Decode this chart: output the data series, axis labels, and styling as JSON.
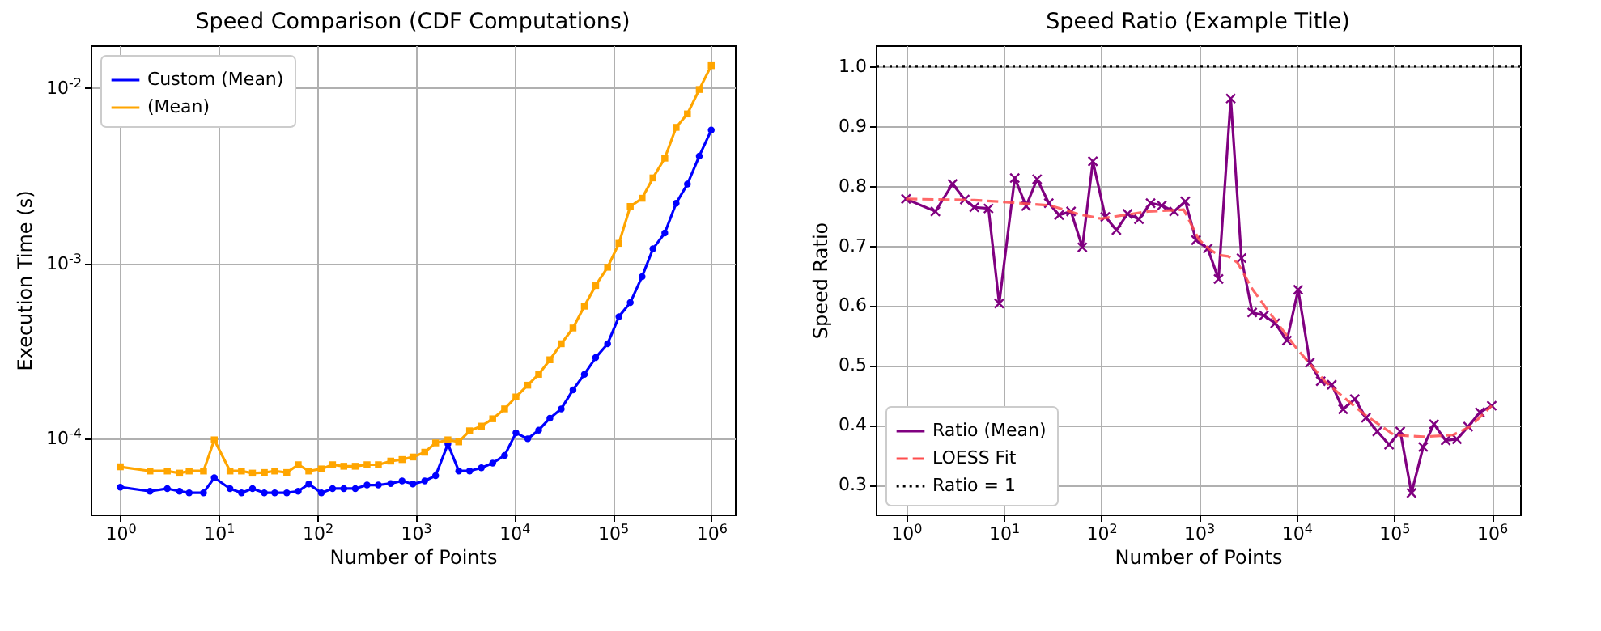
{
  "chart_data": [
    {
      "type": "line",
      "title": "Speed Comparison (CDF Computations)",
      "xlabel": "Number of Points",
      "ylabel": "Execution Time (s)",
      "log": "xy",
      "grid": true,
      "legend": "top left",
      "xlim": [
        0.5,
        1740000
      ],
      "ylim": [
        3.7e-05,
        0.0175
      ],
      "xticks": [
        {
          "value": 1,
          "label": "10$^{0}$"
        },
        {
          "value": 10,
          "label": "10$^{1}$"
        },
        {
          "value": 100,
          "label": "10$^{2}$"
        },
        {
          "value": 1000,
          "label": "10$^{3}$"
        },
        {
          "value": 10000,
          "label": "10$^{4}$"
        },
        {
          "value": 100000,
          "label": "10$^{5}$"
        },
        {
          "value": 1000000,
          "label": "10$^{6}$"
        }
      ],
      "yticks": [
        {
          "value": 0.0001,
          "label": "10$^{-4}$"
        },
        {
          "value": 0.001,
          "label": "10$^{-3}$"
        },
        {
          "value": 0.01,
          "label": "10$^{-2}$"
        }
      ],
      "x": [
        1,
        2,
        3,
        4,
        5,
        7,
        9,
        13,
        17,
        22,
        29,
        37,
        49,
        64,
        82,
        110,
        143,
        186,
        243,
        320,
        417,
        557,
        726,
        935,
        1233,
        1590,
        2120,
        2730,
        3520,
        4640,
        6040,
        7980,
        10400,
        13700,
        17700,
        23000,
        30000,
        39500,
        51500,
        67100,
        88700,
        115600,
        150600,
        198600,
        256000,
        337600,
        440000,
        573000,
        756000,
        1000000
      ],
      "series": [
        {
          "name": "Custom (Mean)",
          "color": "#0000ff",
          "marker": "circle",
          "values": [
            5.3e-05,
            5.02e-05,
            5.2e-05,
            5.02e-05,
            4.92e-05,
            4.92e-05,
            6e-05,
            5.2e-05,
            4.92e-05,
            5.2e-05,
            4.92e-05,
            4.92e-05,
            4.92e-05,
            5.02e-05,
            5.52e-05,
            4.92e-05,
            5.2e-05,
            5.2e-05,
            5.2e-05,
            5.45e-05,
            5.45e-05,
            5.56e-05,
            5.75e-05,
            5.52e-05,
            5.75e-05,
            6.16e-05,
            9.34e-05,
            6.55e-05,
            6.55e-05,
            6.83e-05,
            7.26e-05,
            8.04e-05,
            0.000108,
            0.0001,
            0.000112,
            0.000131,
            0.000148,
            0.00019,
            0.000233,
            0.00029,
            0.000348,
            0.000497,
            0.000597,
            0.00084,
            0.00121,
            0.00149,
            0.0022,
            0.00283,
            0.00409,
            0.00575
          ]
        },
        {
          "name": "(Mean)",
          "color": "#ffa500",
          "marker": "square",
          "values": [
            6.92e-05,
            6.55e-05,
            6.55e-05,
            6.37e-05,
            6.55e-05,
            6.55e-05,
            9.86e-05,
            6.55e-05,
            6.55e-05,
            6.37e-05,
            6.42e-05,
            6.55e-05,
            6.42e-05,
            7.11e-05,
            6.55e-05,
            6.73e-05,
            7.11e-05,
            6.97e-05,
            6.97e-05,
            7.11e-05,
            7.11e-05,
            7.46e-05,
            7.61e-05,
            7.87e-05,
            8.38e-05,
            9.47e-05,
            9.86e-05,
            9.6e-05,
            0.000111,
            0.000118,
            0.00013,
            0.000148,
            0.000173,
            0.000202,
            0.000233,
            0.000282,
            0.000348,
            0.000428,
            0.00057,
            0.000748,
            0.00095,
            0.0013,
            0.00211,
            0.00235,
            0.00307,
            0.00398,
            0.00596,
            0.00711,
            0.0098,
            0.0134
          ]
        }
      ]
    },
    {
      "type": "line",
      "title": "Speed Ratio (Example Title)",
      "xlabel": "Number of Points",
      "ylabel": "Speed Ratio",
      "log": "x",
      "grid": true,
      "legend": "bottom left",
      "xlim": [
        0.49,
        1950000
      ],
      "ylim": [
        0.25,
        1.035
      ],
      "xticks": [
        {
          "value": 1,
          "label": "10$^{0}$"
        },
        {
          "value": 10,
          "label": "10$^{1}$"
        },
        {
          "value": 100,
          "label": "10$^{2}$"
        },
        {
          "value": 1000,
          "label": "10$^{3}$"
        },
        {
          "value": 10000,
          "label": "10$^{4}$"
        },
        {
          "value": 100000,
          "label": "10$^{5}$"
        },
        {
          "value": 1000000,
          "label": "10$^{6}$"
        }
      ],
      "yticks": [
        0.3,
        0.4,
        0.5,
        0.6,
        0.7,
        0.8,
        0.9,
        {
          "value": 1,
          "label": "1.0"
        }
      ],
      "x": [
        1,
        2,
        3,
        4,
        5,
        7,
        9,
        13,
        17,
        22,
        29,
        37,
        49,
        64,
        82,
        110,
        143,
        186,
        243,
        320,
        417,
        557,
        726,
        935,
        1233,
        1590,
        2120,
        2730,
        3520,
        4640,
        6040,
        7980,
        10400,
        13700,
        17700,
        23000,
        30000,
        39500,
        51500,
        67100,
        88700,
        115600,
        150600,
        198600,
        256000,
        337600,
        440000,
        573000,
        756000,
        1000000
      ],
      "series": [
        {
          "name": "Ratio (Mean)",
          "color": "#800080",
          "marker": "cross",
          "values": [
            0.778,
            0.757,
            0.803,
            0.777,
            0.764,
            0.762,
            0.603,
            0.813,
            0.766,
            0.811,
            0.771,
            0.751,
            0.757,
            0.697,
            0.841,
            0.748,
            0.726,
            0.753,
            0.744,
            0.771,
            0.767,
            0.757,
            0.774,
            0.709,
            0.695,
            0.644,
            0.946,
            0.679,
            0.588,
            0.583,
            0.57,
            0.541,
            0.626,
            0.504,
            0.473,
            0.467,
            0.426,
            0.443,
            0.412,
            0.389,
            0.367,
            0.389,
            0.286,
            0.363,
            0.401,
            0.374,
            0.376,
            0.397,
            0.421,
            0.432
          ]
        },
        {
          "name": "LOESS Fit",
          "color": "#ff4d4d",
          "marker": "none",
          "line_style": "dashed",
          "x": [
            1,
            5,
            10,
            30,
            60,
            100,
            300,
            700,
            1000,
            1300,
            1600,
            2000,
            2500,
            3500,
            5000,
            10000,
            20000,
            50000,
            100000,
            200000,
            400000,
            600000,
            1000000
          ],
          "values": [
            0.778,
            0.776,
            0.773,
            0.767,
            0.752,
            0.745,
            0.757,
            0.76,
            0.71,
            0.693,
            0.684,
            0.682,
            0.671,
            0.628,
            0.593,
            0.528,
            0.471,
            0.417,
            0.383,
            0.38,
            0.383,
            0.397,
            0.432
          ]
        }
      ],
      "ref_lines": [
        {
          "axis": "y",
          "value": 1,
          "label": "Ratio = 1",
          "color": "#000000",
          "line_style": "dotted"
        }
      ]
    }
  ]
}
